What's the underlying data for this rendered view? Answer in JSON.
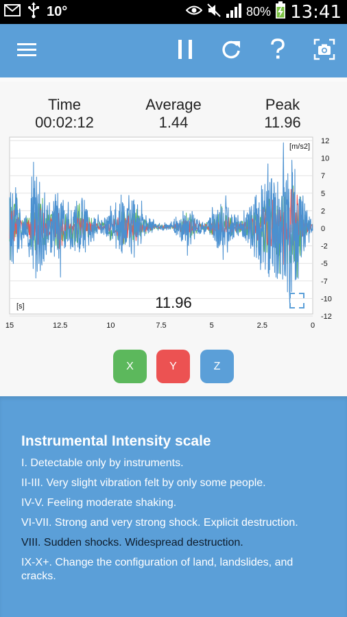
{
  "status_bar": {
    "temperature": "10°",
    "battery_percent": "80%",
    "clock": "13:41",
    "icons": [
      "mail-icon",
      "usb-icon",
      "eye-icon",
      "mute-icon",
      "signal-icon",
      "battery-charging-icon"
    ]
  },
  "toolbar": {
    "icons": [
      "menu-icon",
      "pause-icon",
      "refresh-icon",
      "help-icon",
      "camera-icon"
    ]
  },
  "stats": {
    "time_label": "Time",
    "time_value": "00:02:12",
    "average_label": "Average",
    "average_value": "1.44",
    "peak_label": "Peak",
    "peak_value": "11.96"
  },
  "chart_data": {
    "type": "line",
    "y_unit": "[m/s2]",
    "x_unit": "[s]",
    "overlay_value": "11.96",
    "x_ticks": [
      "15",
      "12.5",
      "10",
      "7.5",
      "5",
      "2.5",
      "0"
    ],
    "y_ticks": [
      "12",
      "10",
      "7",
      "5",
      "2",
      "0",
      "-2",
      "-5",
      "-7",
      "-10",
      "-12"
    ],
    "xlim": [
      15,
      0
    ],
    "ylim": [
      -12,
      12
    ],
    "grid": true,
    "series": [
      {
        "color": "#5cb85c"
      },
      {
        "color": "#ec5252"
      },
      {
        "color": "#4a90d0"
      }
    ]
  },
  "axis_buttons": {
    "x_label": "X",
    "y_label": "Y",
    "z_label": "Z"
  },
  "colors": {
    "primary": "#5b9fd8",
    "x_green": "#5cb85c",
    "y_red": "#ec5252",
    "z_blue": "#5b9fd8"
  },
  "info": {
    "title": "Instrumental Intensity scale",
    "items": [
      "I. Detectable only by instruments.",
      "II-III. Very slight vibration felt by only some people.",
      "IV-V. Feeling moderate shaking.",
      "VI-VII. Strong and very strong shock. Explicit destruction.",
      "VIII. Sudden shocks. Widespread destruction.",
      "IX-X+. Change the configuration of land, landslides, and cracks."
    ]
  }
}
